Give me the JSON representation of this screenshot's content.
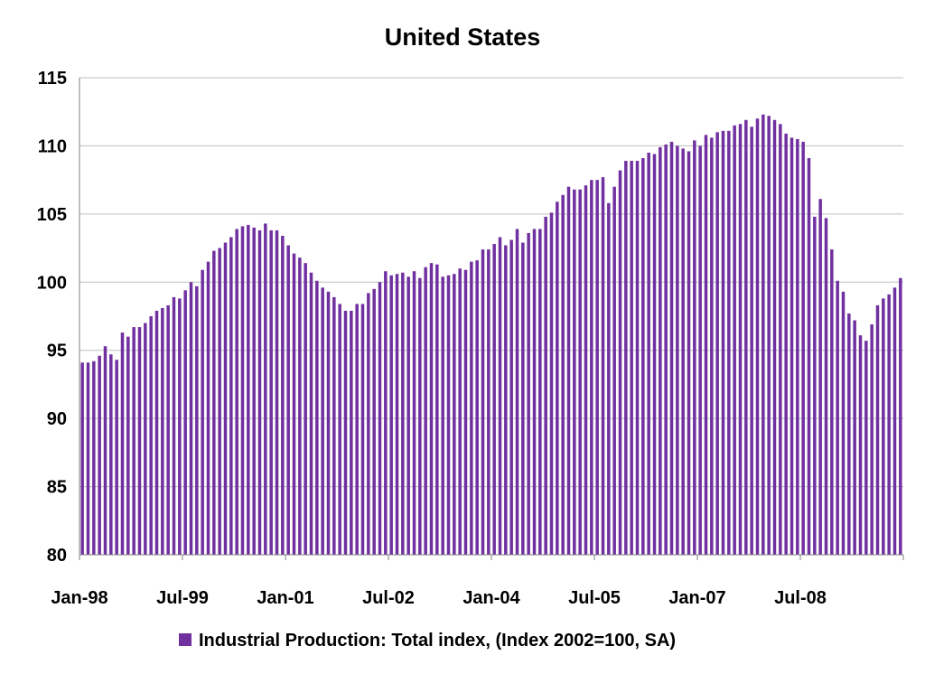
{
  "chart_data": {
    "type": "bar",
    "title": "United States",
    "xlabel": "",
    "ylabel": "",
    "ylim": [
      80,
      115
    ],
    "yticks": [
      "80",
      "85",
      "90",
      "95",
      "100",
      "105",
      "110",
      "115"
    ],
    "xticks": [
      {
        "label": "Jan-98",
        "index": 0
      },
      {
        "label": "Jul-99",
        "index": 18
      },
      {
        "label": "Jan-01",
        "index": 36
      },
      {
        "label": "Jul-02",
        "index": 54
      },
      {
        "label": "Jan-04",
        "index": 72
      },
      {
        "label": "Jul-05",
        "index": 90
      },
      {
        "label": "Jan-07",
        "index": 108
      },
      {
        "label": "Jul-08",
        "index": 126
      }
    ],
    "grid": true,
    "legend_position": "bottom",
    "bar_color": "#7030A0",
    "series": [
      {
        "name": "Industrial Production: Total index, (Index 2002=100, SA)",
        "values": [
          94.1,
          94.1,
          94.2,
          94.6,
          95.3,
          94.7,
          94.3,
          96.3,
          96.0,
          96.7,
          96.7,
          97.0,
          97.5,
          97.9,
          98.1,
          98.3,
          98.9,
          98.8,
          99.4,
          100.0,
          99.7,
          100.9,
          101.5,
          102.3,
          102.5,
          102.9,
          103.3,
          103.9,
          104.1,
          104.2,
          104.0,
          103.8,
          104.3,
          103.8,
          103.8,
          103.4,
          102.7,
          102.1,
          101.8,
          101.4,
          100.7,
          100.1,
          99.6,
          99.3,
          98.9,
          98.4,
          97.9,
          97.9,
          98.4,
          98.4,
          99.2,
          99.5,
          100.0,
          100.8,
          100.5,
          100.6,
          100.7,
          100.4,
          100.8,
          100.3,
          101.1,
          101.4,
          101.3,
          100.4,
          100.5,
          100.6,
          101.0,
          100.9,
          101.5,
          101.6,
          102.4,
          102.4,
          102.8,
          103.3,
          102.7,
          103.1,
          103.9,
          102.9,
          103.6,
          103.9,
          103.9,
          104.8,
          105.1,
          105.9,
          106.4,
          107.0,
          106.8,
          106.8,
          107.1,
          107.5,
          107.5,
          107.7,
          105.8,
          107.0,
          108.2,
          108.9,
          108.9,
          108.9,
          109.1,
          109.5,
          109.4,
          109.9,
          110.1,
          110.3,
          110.0,
          109.8,
          109.6,
          110.4,
          110.0,
          110.8,
          110.6,
          111.0,
          111.1,
          111.1,
          111.5,
          111.6,
          111.9,
          111.4,
          112.0,
          112.3,
          112.2,
          111.9,
          111.6,
          110.9,
          110.6,
          110.5,
          110.3,
          109.1,
          104.8,
          106.1,
          104.7,
          102.4,
          100.1,
          99.3,
          97.7,
          97.2,
          96.1,
          95.7,
          96.9,
          98.3,
          98.8,
          99.1,
          99.6,
          100.3
        ]
      }
    ]
  }
}
